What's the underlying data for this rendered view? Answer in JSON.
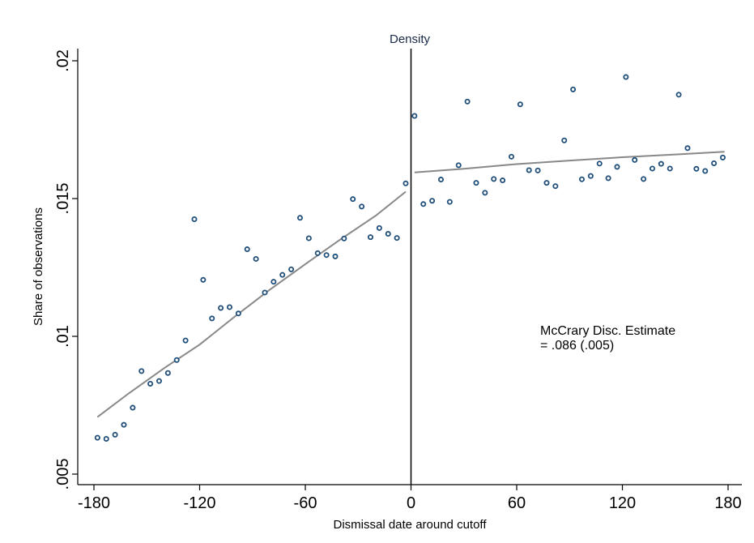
{
  "chart_data": {
    "type": "scatter",
    "title": "Density",
    "xlabel": "Dismissal date around cutoff",
    "ylabel": "Share of observations",
    "xlim": [
      -180,
      180
    ],
    "ylim": [
      0.005,
      0.02
    ],
    "xticks": [
      -180,
      -120,
      -60,
      0,
      60,
      120,
      180
    ],
    "xtick_labels": [
      "-180",
      "-120",
      "-60",
      "0",
      "60",
      "120",
      "180"
    ],
    "yticks": [
      0.005,
      0.01,
      0.015,
      0.02
    ],
    "ytick_labels": [
      ".005",
      ".01",
      ".015",
      ".02"
    ],
    "cutoff_x": 0,
    "grid": false,
    "annotation": [
      "McCrary Disc. Estimate",
      "= .086 (.005)"
    ],
    "colors": {
      "points": "#1f4e79",
      "fit": "#888888",
      "cutoff": "#000000"
    },
    "points": [
      {
        "x": -178,
        "y": 0.00632
      },
      {
        "x": -173,
        "y": 0.00628
      },
      {
        "x": -168,
        "y": 0.00643
      },
      {
        "x": -163,
        "y": 0.00679
      },
      {
        "x": -158,
        "y": 0.00741
      },
      {
        "x": -153,
        "y": 0.00874
      },
      {
        "x": -148,
        "y": 0.00828
      },
      {
        "x": -143,
        "y": 0.00838
      },
      {
        "x": -138,
        "y": 0.00867
      },
      {
        "x": -133,
        "y": 0.00914
      },
      {
        "x": -128,
        "y": 0.00985
      },
      {
        "x": -123,
        "y": 0.01425
      },
      {
        "x": -118,
        "y": 0.01205
      },
      {
        "x": -113,
        "y": 0.01065
      },
      {
        "x": -108,
        "y": 0.01103
      },
      {
        "x": -103,
        "y": 0.01106
      },
      {
        "x": -98,
        "y": 0.01083
      },
      {
        "x": -93,
        "y": 0.01316
      },
      {
        "x": -88,
        "y": 0.01281
      },
      {
        "x": -83,
        "y": 0.01159
      },
      {
        "x": -78,
        "y": 0.01198
      },
      {
        "x": -73,
        "y": 0.01223
      },
      {
        "x": -68,
        "y": 0.01243
      },
      {
        "x": -63,
        "y": 0.0143
      },
      {
        "x": -58,
        "y": 0.01356
      },
      {
        "x": -53,
        "y": 0.01302
      },
      {
        "x": -48,
        "y": 0.01295
      },
      {
        "x": -43,
        "y": 0.0129
      },
      {
        "x": -38,
        "y": 0.01355
      },
      {
        "x": -33,
        "y": 0.01498
      },
      {
        "x": -28,
        "y": 0.01471
      },
      {
        "x": -23,
        "y": 0.0136
      },
      {
        "x": -18,
        "y": 0.01393
      },
      {
        "x": -13,
        "y": 0.01372
      },
      {
        "x": -8,
        "y": 0.01357
      },
      {
        "x": -3,
        "y": 0.01555
      },
      {
        "x": 2,
        "y": 0.018
      },
      {
        "x": 7,
        "y": 0.0148
      },
      {
        "x": 12,
        "y": 0.01492
      },
      {
        "x": 17,
        "y": 0.01569
      },
      {
        "x": 22,
        "y": 0.01488
      },
      {
        "x": 27,
        "y": 0.01621
      },
      {
        "x": 32,
        "y": 0.01852
      },
      {
        "x": 37,
        "y": 0.01557
      },
      {
        "x": 42,
        "y": 0.01521
      },
      {
        "x": 47,
        "y": 0.01571
      },
      {
        "x": 52,
        "y": 0.01566
      },
      {
        "x": 57,
        "y": 0.01652
      },
      {
        "x": 62,
        "y": 0.01842
      },
      {
        "x": 67,
        "y": 0.01603
      },
      {
        "x": 72,
        "y": 0.01602
      },
      {
        "x": 77,
        "y": 0.01557
      },
      {
        "x": 82,
        "y": 0.01545
      },
      {
        "x": 87,
        "y": 0.01711
      },
      {
        "x": 92,
        "y": 0.01896
      },
      {
        "x": 97,
        "y": 0.0157
      },
      {
        "x": 102,
        "y": 0.01582
      },
      {
        "x": 107,
        "y": 0.01627
      },
      {
        "x": 112,
        "y": 0.01574
      },
      {
        "x": 117,
        "y": 0.01615
      },
      {
        "x": 122,
        "y": 0.01941
      },
      {
        "x": 127,
        "y": 0.0164
      },
      {
        "x": 132,
        "y": 0.01571
      },
      {
        "x": 137,
        "y": 0.01609
      },
      {
        "x": 142,
        "y": 0.01626
      },
      {
        "x": 147,
        "y": 0.01609
      },
      {
        "x": 152,
        "y": 0.01877
      },
      {
        "x": 157,
        "y": 0.01683
      },
      {
        "x": 162,
        "y": 0.01608
      },
      {
        "x": 167,
        "y": 0.016
      },
      {
        "x": 172,
        "y": 0.01628
      },
      {
        "x": 177,
        "y": 0.01649
      }
    ],
    "fit_left": [
      {
        "x": -178,
        "y": 0.00707
      },
      {
        "x": -160,
        "y": 0.00794
      },
      {
        "x": -140,
        "y": 0.00885
      },
      {
        "x": -120,
        "y": 0.0097
      },
      {
        "x": -100,
        "y": 0.01072
      },
      {
        "x": -80,
        "y": 0.0117
      },
      {
        "x": -60,
        "y": 0.01262
      },
      {
        "x": -40,
        "y": 0.01352
      },
      {
        "x": -20,
        "y": 0.01438
      },
      {
        "x": -3,
        "y": 0.01525
      }
    ],
    "fit_right": [
      {
        "x": 2,
        "y": 0.01595
      },
      {
        "x": 30,
        "y": 0.01608
      },
      {
        "x": 60,
        "y": 0.01625
      },
      {
        "x": 90,
        "y": 0.01638
      },
      {
        "x": 120,
        "y": 0.0165
      },
      {
        "x": 150,
        "y": 0.0166
      },
      {
        "x": 178,
        "y": 0.0167
      }
    ]
  }
}
